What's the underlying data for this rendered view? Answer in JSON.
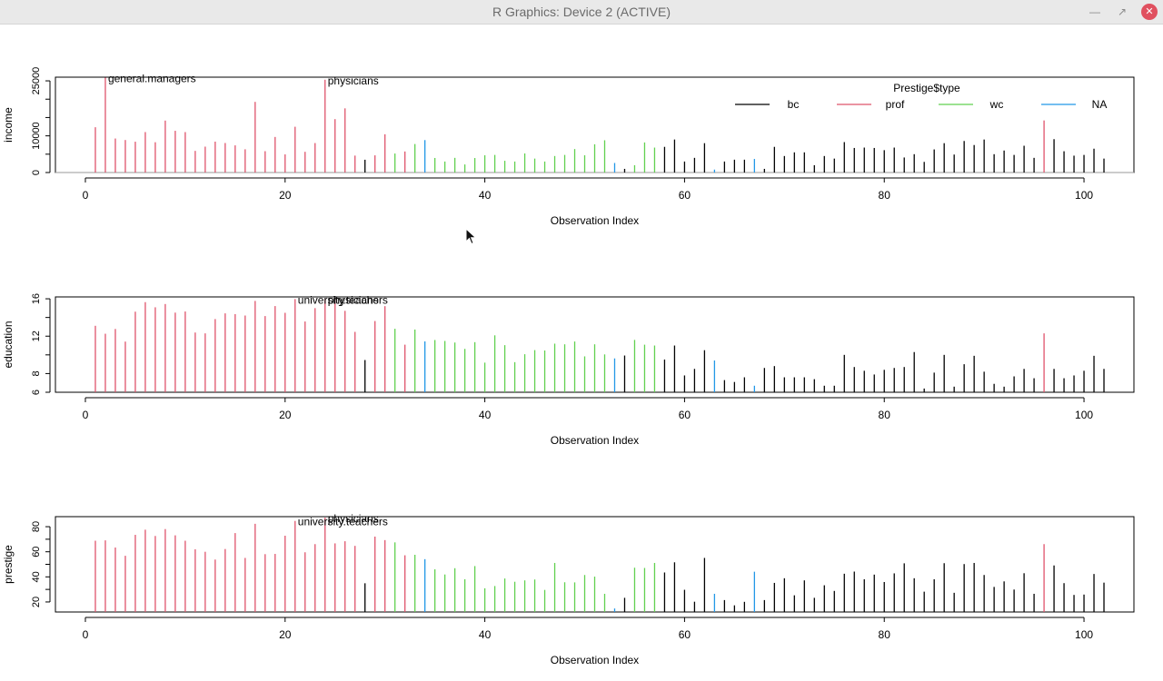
{
  "window": {
    "title": "R Graphics: Device 2 (ACTIVE)",
    "minimize_icon": "minimize-icon",
    "restore_icon": "restore-icon",
    "close_icon": "close-icon"
  },
  "colors": {
    "bc": "#000000",
    "prof": "#DF536B",
    "wc": "#61D04F",
    "NA": "#2297E6"
  },
  "chart_data": [
    {
      "type": "bar",
      "variable": "income",
      "ylabel": "income",
      "xlabel": "Observation Index",
      "xlim": [
        -3,
        105
      ],
      "ylim": [
        0,
        26000
      ],
      "xticks": [
        0,
        20,
        40,
        60,
        80,
        100
      ],
      "yticks": [
        0,
        10000,
        25000
      ],
      "minor_yticks": [
        5000,
        15000,
        20000
      ],
      "baseline": 0,
      "legend": {
        "title": "Prestige$type",
        "position": "top-right",
        "entries": [
          "bc",
          "prof",
          "wc",
          "NA"
        ]
      },
      "labels": [
        {
          "index": 2,
          "text": "general.managers"
        },
        {
          "index": 24,
          "text": "physicians"
        }
      ]
    },
    {
      "type": "bar",
      "variable": "education",
      "ylabel": "education",
      "xlabel": "Observation Index",
      "xlim": [
        -3,
        105
      ],
      "ylim": [
        6,
        16.2
      ],
      "xticks": [
        0,
        20,
        40,
        60,
        80,
        100
      ],
      "yticks": [
        6,
        8,
        12,
        16
      ],
      "minor_yticks": [
        10,
        14
      ],
      "baseline": 6,
      "labels": [
        {
          "index": 21,
          "text": "university.teachers"
        },
        {
          "index": 24,
          "text": "physicians"
        }
      ]
    },
    {
      "type": "bar",
      "variable": "prestige",
      "ylabel": "prestige",
      "xlabel": "Observation Index",
      "xlim": [
        -3,
        105
      ],
      "ylim": [
        12,
        88
      ],
      "xticks": [
        0,
        20,
        40,
        60,
        80,
        100
      ],
      "yticks": [
        20,
        40,
        60,
        80
      ],
      "minor_yticks": [
        30,
        50,
        70
      ],
      "baseline": 12,
      "labels": [
        {
          "index": 21,
          "text": "university.teachers"
        },
        {
          "index": 24,
          "text": "physicians"
        }
      ]
    }
  ],
  "observations": {
    "index": [
      1,
      2,
      3,
      4,
      5,
      6,
      7,
      8,
      9,
      10,
      11,
      12,
      13,
      14,
      15,
      16,
      17,
      18,
      19,
      20,
      21,
      22,
      23,
      24,
      25,
      26,
      27,
      28,
      29,
      30,
      31,
      32,
      33,
      34,
      35,
      36,
      37,
      38,
      39,
      40,
      41,
      42,
      43,
      44,
      45,
      46,
      47,
      48,
      49,
      50,
      51,
      52,
      53,
      54,
      55,
      56,
      57,
      58,
      59,
      60,
      61,
      62,
      63,
      64,
      65,
      66,
      67,
      68,
      69,
      70,
      71,
      72,
      73,
      74,
      75,
      76,
      77,
      78,
      79,
      80,
      81,
      82,
      83,
      84,
      85,
      86,
      87,
      88,
      89,
      90,
      91,
      92,
      93,
      94,
      95,
      96,
      97,
      98,
      99,
      100,
      101,
      102
    ],
    "type": [
      "prof",
      "prof",
      "prof",
      "prof",
      "prof",
      "prof",
      "prof",
      "prof",
      "prof",
      "prof",
      "prof",
      "prof",
      "prof",
      "prof",
      "prof",
      "prof",
      "prof",
      "prof",
      "prof",
      "prof",
      "prof",
      "prof",
      "prof",
      "prof",
      "prof",
      "prof",
      "prof",
      "bc",
      "prof",
      "prof",
      "wc",
      "prof",
      "wc",
      "NA",
      "wc",
      "wc",
      "wc",
      "wc",
      "wc",
      "wc",
      "wc",
      "wc",
      "wc",
      "wc",
      "wc",
      "wc",
      "wc",
      "wc",
      "wc",
      "wc",
      "wc",
      "wc",
      "NA",
      "bc",
      "wc",
      "wc",
      "wc",
      "bc",
      "bc",
      "bc",
      "bc",
      "bc",
      "NA",
      "bc",
      "bc",
      "bc",
      "NA",
      "bc",
      "bc",
      "bc",
      "bc",
      "bc",
      "bc",
      "bc",
      "bc",
      "bc",
      "bc",
      "bc",
      "bc",
      "bc",
      "bc",
      "bc",
      "bc",
      "bc",
      "bc",
      "bc",
      "bc",
      "bc",
      "bc",
      "bc",
      "bc",
      "bc",
      "bc",
      "bc",
      "bc",
      "prof",
      "bc",
      "bc",
      "bc",
      "bc",
      "bc",
      "bc"
    ],
    "income": [
      12351,
      25879,
      9271,
      8865,
      8403,
      11030,
      8258,
      14163,
      11377,
      11023,
      5902,
      7059,
      8425,
      8049,
      7405,
      6336,
      19263,
      5819,
      9697,
      4945,
      12480,
      5648,
      8034,
      25308,
      14558,
      17498,
      4614,
      3485,
      4685,
      10432,
      5180,
      5740,
      7770,
      8845,
      3970,
      3000,
      4000,
      2200,
      3950,
      4700,
      4800,
      3200,
      3000,
      5200,
      3800,
      3000,
      4500,
      4800,
      6400,
      4700,
      7700,
      8800,
      2600,
      1000,
      2000,
      8200,
      6800,
      7000,
      9000,
      3000,
      4000,
      8000,
      800,
      3000,
      3500,
      3500,
      3700,
      1000,
      7000,
      4500,
      5500,
      5500,
      2000,
      4500,
      3800,
      8300,
      6700,
      6800,
      6700,
      6100,
      6800,
      4100,
      5000,
      2900,
      6300,
      8000,
      4900,
      8600,
      7500,
      9000,
      5000,
      6000,
      4800,
      7300,
      4000,
      14200,
      9100,
      5800,
      4600,
      4800,
      6500,
      3800
    ],
    "education": [
      13.11,
      12.26,
      12.77,
      11.42,
      14.62,
      15.64,
      15.09,
      15.44,
      14.52,
      14.64,
      12.39,
      12.3,
      13.83,
      14.44,
      14.36,
      14.21,
      15.77,
      14.15,
      15.22,
      14.5,
      15.97,
      13.57,
      15.0,
      15.96,
      15.94,
      14.71,
      12.46,
      9.45,
      13.62,
      15.21,
      12.79,
      11.09,
      12.71,
      11.44,
      11.59,
      11.49,
      11.32,
      10.64,
      11.36,
      9.17,
      12.09,
      11.04,
      9.22,
      10.07,
      10.51,
      10.47,
      11.2,
      11.13,
      11.43,
      9.84,
      11.13,
      10.05,
      9.62,
      9.93,
      11.6,
      11.09,
      11.0,
      9.5,
      11.0,
      7.8,
      8.5,
      10.5,
      9.4,
      7.3,
      7.1,
      7.6,
      6.7,
      8.6,
      8.8,
      7.6,
      7.6,
      7.6,
      7.4,
      6.7,
      6.7,
      10.0,
      8.7,
      8.3,
      7.9,
      8.4,
      8.6,
      8.7,
      10.3,
      6.4,
      8.1,
      10.0,
      6.6,
      9.0,
      9.9,
      8.2,
      6.9,
      6.6,
      7.7,
      8.5,
      7.5,
      12.3,
      8.5,
      7.5,
      7.8,
      8.3,
      9.9,
      8.5
    ],
    "prestige": [
      68.8,
      69.1,
      63.4,
      56.8,
      73.5,
      77.6,
      72.6,
      78.1,
      73.1,
      68.8,
      62.0,
      60.0,
      53.8,
      62.2,
      74.9,
      55.1,
      82.3,
      58.1,
      58.3,
      72.8,
      84.6,
      59.6,
      66.1,
      87.2,
      66.7,
      68.4,
      64.7,
      34.9,
      72.1,
      69.3,
      67.5,
      57.2,
      57.6,
      54.1,
      46.0,
      41.9,
      46.9,
      38.1,
      48.6,
      30.9,
      32.7,
      38.7,
      36.1,
      37.2,
      37.9,
      29.6,
      51.1,
      35.7,
      35.6,
      41.5,
      40.2,
      26.5,
      14.8,
      23.3,
      47.3,
      47.1,
      51.1,
      43.5,
      51.6,
      29.7,
      20.2,
      55.1,
      26.5,
      21.5,
      17.3,
      20.1,
      44.1,
      21.5,
      35.2,
      38.9,
      25.3,
      37.2,
      23.3,
      33.3,
      28.8,
      42.5,
      44.2,
      38.1,
      41.8,
      35.9,
      42.8,
      50.8,
      38.9,
      28.2,
      38.1,
      50.9,
      27.3,
      50.2,
      51.1,
      41.5,
      32.0,
      36.4,
      29.9,
      42.9,
      26.5,
      66.1,
      49.1,
      35.0,
      25.6,
      25.9,
      42.3,
      35.4
    ]
  },
  "legend": {
    "title": "Prestige$type",
    "entries": [
      "bc",
      "prof",
      "wc",
      "NA"
    ]
  }
}
